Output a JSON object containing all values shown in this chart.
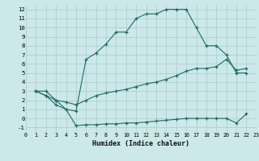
{
  "xlabel": "Humidex (Indice chaleur)",
  "bg_color": "#cce8e8",
  "grid_color": "#a8cccc",
  "line_color": "#1f6b65",
  "xlim": [
    0,
    23
  ],
  "ylim": [
    -1.5,
    12.5
  ],
  "xticks": [
    0,
    1,
    2,
    3,
    4,
    5,
    6,
    7,
    8,
    9,
    10,
    11,
    12,
    13,
    14,
    15,
    16,
    17,
    18,
    19,
    20,
    21,
    22,
    23
  ],
  "yticks": [
    -1,
    0,
    1,
    2,
    3,
    4,
    5,
    6,
    7,
    8,
    9,
    10,
    11,
    12
  ],
  "curve1_x": [
    1,
    2,
    3,
    4,
    5,
    6,
    7,
    8,
    9,
    10,
    11,
    12,
    13,
    14,
    15,
    16,
    17,
    18,
    19,
    20,
    21,
    22
  ],
  "curve1_y": [
    3.0,
    3.0,
    2.0,
    1.0,
    0.8,
    6.5,
    7.2,
    8.2,
    9.5,
    9.5,
    11.0,
    11.5,
    11.5,
    12.0,
    12.0,
    12.0,
    10.0,
    8.0,
    8.0,
    7.0,
    5.0,
    5.0
  ],
  "curve2_x": [
    1,
    2,
    3,
    4,
    5,
    6,
    7,
    8,
    9,
    10,
    11,
    12,
    13,
    14,
    15,
    16,
    17,
    18,
    19,
    20,
    21,
    22
  ],
  "curve2_y": [
    3.0,
    2.5,
    2.0,
    1.8,
    1.5,
    2.0,
    2.5,
    2.8,
    3.0,
    3.2,
    3.5,
    3.8,
    4.0,
    4.3,
    4.7,
    5.2,
    5.5,
    5.5,
    5.7,
    6.5,
    5.3,
    5.5
  ],
  "curve3_x": [
    1,
    2,
    3,
    4,
    5,
    6,
    7,
    8,
    9,
    10,
    11,
    12,
    13,
    14,
    15,
    16,
    17,
    18,
    19,
    20,
    21,
    22
  ],
  "curve3_y": [
    3.0,
    2.5,
    1.5,
    1.0,
    -0.8,
    -0.7,
    -0.7,
    -0.6,
    -0.6,
    -0.5,
    -0.5,
    -0.4,
    -0.3,
    -0.2,
    -0.1,
    0.0,
    0.0,
    0.0,
    0.0,
    0.0,
    -0.5,
    0.5
  ]
}
